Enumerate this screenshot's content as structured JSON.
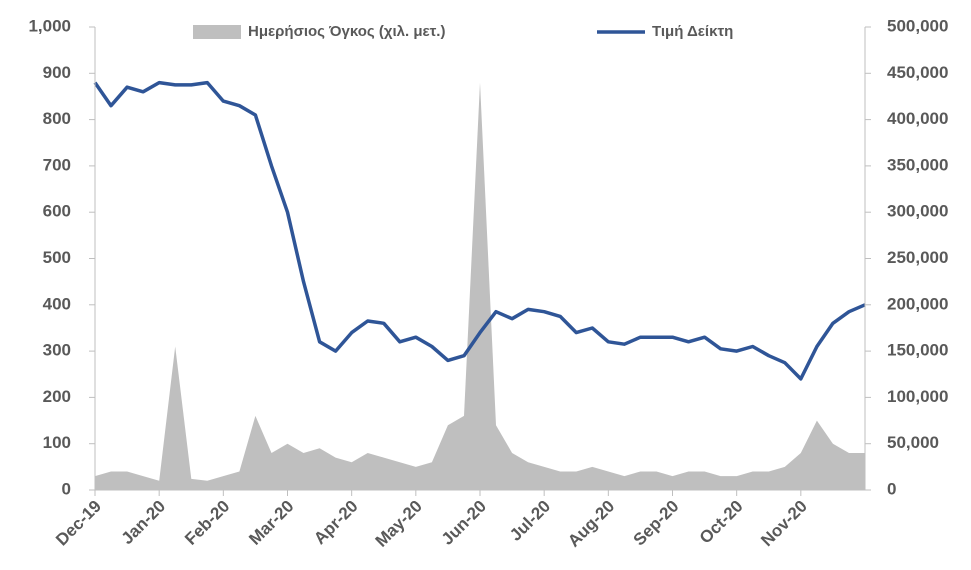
{
  "chart_data": {
    "type": "line",
    "categories": [
      "Dec-19",
      null,
      null,
      null,
      "Jan-20",
      null,
      null,
      null,
      "Feb-20",
      null,
      null,
      null,
      "Mar-20",
      null,
      null,
      null,
      "Apr-20",
      null,
      null,
      null,
      "May-20",
      null,
      null,
      null,
      "Jun-20",
      null,
      null,
      null,
      "Jul-20",
      null,
      null,
      null,
      "Aug-20",
      null,
      null,
      null,
      "Sep-20",
      null,
      null,
      null,
      "Oct-20",
      null,
      null,
      null,
      "Nov-20",
      null,
      null,
      null,
      null
    ],
    "series": [
      {
        "name": "Ημερήσιος Όγκος (χιλ. μετ.)",
        "type": "area",
        "axis": "y2",
        "color": "#bfbfbf",
        "values": [
          15000,
          20000,
          20000,
          15000,
          10000,
          155000,
          12000,
          10000,
          15000,
          20000,
          80000,
          40000,
          50000,
          40000,
          45000,
          35000,
          30000,
          40000,
          35000,
          30000,
          25000,
          30000,
          70000,
          80000,
          440000,
          70000,
          40000,
          30000,
          25000,
          20000,
          20000,
          25000,
          20000,
          15000,
          20000,
          20000,
          15000,
          20000,
          20000,
          15000,
          15000,
          20000,
          20000,
          25000,
          40000,
          75000,
          50000,
          40000,
          40000
        ]
      },
      {
        "name": "Τιμή Δείκτη",
        "type": "line",
        "color": "#2f5597",
        "values": [
          880,
          830,
          870,
          860,
          880,
          875,
          875,
          880,
          840,
          830,
          810,
          700,
          600,
          450,
          320,
          300,
          340,
          365,
          360,
          320,
          330,
          310,
          280,
          290,
          340,
          385,
          370,
          390,
          385,
          375,
          340,
          350,
          320,
          315,
          330,
          330,
          330,
          320,
          330,
          305,
          300,
          310,
          290,
          275,
          240,
          310,
          360,
          385,
          400
        ]
      }
    ],
    "ylim": [
      0,
      1000
    ],
    "yticks": [
      0,
      100,
      200,
      300,
      400,
      500,
      600,
      700,
      800,
      900,
      {
        "value": 1000,
        "label": "1,000"
      }
    ],
    "y2lim": [
      0,
      500000
    ],
    "y2ticks": [
      0,
      {
        "value": 50000,
        "label": "50,000"
      },
      {
        "value": 100000,
        "label": "100,000"
      },
      {
        "value": 150000,
        "label": "150,000"
      },
      {
        "value": 200000,
        "label": "200,000"
      },
      {
        "value": 250000,
        "label": "250,000"
      },
      {
        "value": 300000,
        "label": "300,000"
      },
      {
        "value": 350000,
        "label": "350,000"
      },
      {
        "value": 400000,
        "label": "400,000"
      },
      {
        "value": 450000,
        "label": "450,000"
      },
      {
        "value": 500000,
        "label": "500,000"
      }
    ],
    "legend": "top"
  }
}
